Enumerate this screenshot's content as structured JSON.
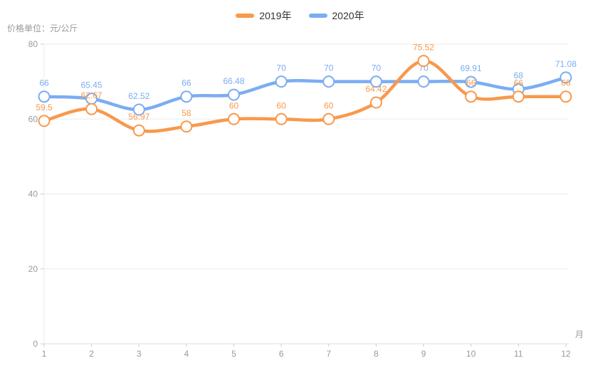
{
  "legend": {
    "items": [
      {
        "label": "2019年",
        "color": "#f8994c"
      },
      {
        "label": "2020年",
        "color": "#7badf1"
      }
    ]
  },
  "chart_data": {
    "type": "line",
    "title": "",
    "unit_label": "价格单位：元/公斤",
    "x_axis_suffix": "月",
    "categories": [
      "1",
      "2",
      "3",
      "4",
      "5",
      "6",
      "7",
      "8",
      "9",
      "10",
      "11",
      "12"
    ],
    "series": [
      {
        "name": "2019年",
        "color": "#f8994c",
        "values": [
          59.5,
          62.67,
          56.97,
          58,
          60,
          60,
          60,
          64.42,
          75.52,
          66,
          66,
          66
        ]
      },
      {
        "name": "2020年",
        "color": "#7badf1",
        "values": [
          66,
          65.45,
          62.52,
          66,
          66.48,
          70,
          70,
          70,
          70,
          69.91,
          68,
          71.08
        ]
      }
    ],
    "xlabel": "月",
    "ylabel": "价格单位：元/公斤",
    "ylim": [
      0,
      80
    ],
    "yticks": [
      0,
      20,
      40,
      60,
      80
    ],
    "grid": true,
    "smooth": true,
    "markers": "white-filled-circles",
    "data_labels": "above-points",
    "legend_position": "top-center"
  },
  "style_colors": {
    "grid_line": "#ebebeb",
    "axis_line": "#dddddd",
    "tick_mark": "#cccccc",
    "axis_text": "#999999",
    "legend_text": "#333333",
    "background": "#ffffff"
  }
}
